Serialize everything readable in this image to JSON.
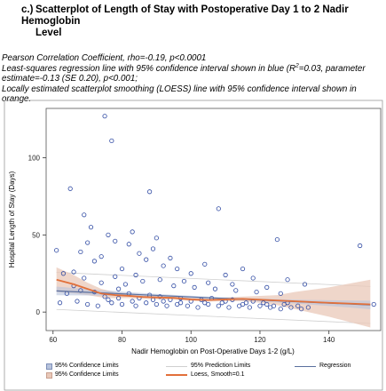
{
  "title": {
    "label": "c.)",
    "line1": "Scatterplot of Length of Stay with Postoperative Day 1 to 2 Nadir Hemoglobin",
    "line2": "Level"
  },
  "notes": {
    "line1": "Pearson Correlation Coefficient, rho=-0.19, p<0.0001",
    "line2a": "Least-squares regression line with 95% confidence interval shown in blue (R",
    "line2sup": "2",
    "line2b": "=0.03, parameter",
    "line3": "estimate=-0.13 (SE 0.20), p<0.001;",
    "line4": "Locally estimated scatterplot smoothing (LOESS) line with 95% confidence interval shown in",
    "line5": "orange."
  },
  "colors": {
    "points": "#2f4aa3",
    "regression": "#5a6f9e",
    "loess": "#e2703a",
    "loess_band": "#e9c8b8",
    "reg_band": "#b7c3dc",
    "prediction": "#cfcfcf"
  },
  "chart_data": {
    "type": "scatter",
    "xlabel": "Nadir Hemoglobin on Post-Operative Days 1-2 (g/L)",
    "ylabel": "Hospital Length of Stay (Days)",
    "xlim": [
      58,
      155
    ],
    "ylim": [
      -12,
      132
    ],
    "xticks": [
      60,
      80,
      100,
      120,
      140
    ],
    "yticks": [
      0,
      50,
      100
    ],
    "grid": false,
    "legend_position": "bottom",
    "legend": [
      "95% Confidence Limits",
      "95% Prediction Limits",
      "Regression",
      "95% Confidence Limits",
      "Loess, Smooth=0.1"
    ],
    "regression": {
      "intercept": 19.8,
      "slope": -0.1
    },
    "regression_ci_halfwidth_at_mean": 0.7,
    "regression_ci_halfwidth_at_ends": 2.8,
    "prediction_halfwidth": 12,
    "loess": {
      "x": [
        61,
        66,
        70,
        74,
        78,
        82,
        86,
        90,
        95,
        100,
        105,
        110,
        115,
        120,
        125,
        130,
        140,
        152
      ],
      "y": [
        21,
        18,
        15,
        12,
        11,
        10.5,
        9.8,
        9.5,
        9.2,
        8.2,
        7.8,
        8.2,
        8.5,
        8,
        7.5,
        7,
        6,
        5
      ],
      "lower": [
        13,
        12,
        11,
        9.5,
        9,
        9,
        8.5,
        8.2,
        8,
        7.2,
        6.8,
        7,
        7,
        6,
        4.5,
        2,
        -3,
        -10
      ],
      "upper": [
        29,
        24,
        19,
        15,
        13,
        12,
        11,
        11,
        10.5,
        9.3,
        8.8,
        9.5,
        10,
        10.5,
        11,
        13,
        16,
        21
      ]
    },
    "points": [
      [
        75,
        127
      ],
      [
        77,
        111
      ],
      [
        65,
        80
      ],
      [
        88,
        78
      ],
      [
        69,
        63
      ],
      [
        108,
        67
      ],
      [
        61,
        40
      ],
      [
        70,
        45
      ],
      [
        78,
        46
      ],
      [
        90,
        48
      ],
      [
        125,
        47
      ],
      [
        149,
        43
      ],
      [
        68,
        39
      ],
      [
        82,
        44
      ],
      [
        72,
        33
      ],
      [
        85,
        38
      ],
      [
        92,
        30
      ],
      [
        96,
        28
      ],
      [
        66,
        26
      ],
      [
        80,
        28
      ],
      [
        100,
        25
      ],
      [
        110,
        24
      ],
      [
        118,
        22
      ],
      [
        128,
        21
      ],
      [
        133,
        18
      ],
      [
        74,
        36
      ],
      [
        87,
        34
      ],
      [
        63,
        25
      ],
      [
        94,
        35
      ],
      [
        115,
        28
      ],
      [
        104,
        31
      ],
      [
        76,
        50
      ],
      [
        83,
        52
      ],
      [
        89,
        41
      ],
      [
        71,
        55
      ],
      [
        64,
        12
      ],
      [
        68,
        14
      ],
      [
        72,
        13
      ],
      [
        75,
        10
      ],
      [
        79,
        15
      ],
      [
        82,
        12
      ],
      [
        85,
        9
      ],
      [
        88,
        11
      ],
      [
        91,
        10
      ],
      [
        94,
        8
      ],
      [
        97,
        9
      ],
      [
        100,
        7
      ],
      [
        103,
        8
      ],
      [
        106,
        9
      ],
      [
        109,
        6
      ],
      [
        112,
        8
      ],
      [
        115,
        5
      ],
      [
        118,
        7
      ],
      [
        121,
        6
      ],
      [
        124,
        4
      ],
      [
        127,
        5
      ],
      [
        131,
        4
      ],
      [
        134,
        3
      ],
      [
        62,
        6
      ],
      [
        67,
        7
      ],
      [
        70,
        5
      ],
      [
        73,
        4
      ],
      [
        77,
        6
      ],
      [
        80,
        5
      ],
      [
        84,
        4
      ],
      [
        87,
        6
      ],
      [
        90,
        5
      ],
      [
        93,
        4
      ],
      [
        96,
        5
      ],
      [
        99,
        4
      ],
      [
        102,
        3
      ],
      [
        105,
        5
      ],
      [
        108,
        4
      ],
      [
        111,
        3
      ],
      [
        114,
        4
      ],
      [
        117,
        3
      ],
      [
        120,
        4
      ],
      [
        123,
        3
      ],
      [
        126,
        2
      ],
      [
        129,
        3
      ],
      [
        132,
        2
      ],
      [
        153,
        5
      ],
      [
        66,
        17
      ],
      [
        74,
        19
      ],
      [
        81,
        18
      ],
      [
        86,
        20
      ],
      [
        95,
        17
      ],
      [
        101,
        16
      ],
      [
        107,
        15
      ],
      [
        113,
        14
      ],
      [
        119,
        13
      ],
      [
        126,
        12
      ],
      [
        69,
        22
      ],
      [
        78,
        23
      ],
      [
        84,
        24
      ],
      [
        91,
        21
      ],
      [
        98,
        20
      ],
      [
        105,
        19
      ],
      [
        112,
        18
      ],
      [
        122,
        16
      ],
      [
        76,
        8
      ],
      [
        79,
        9
      ],
      [
        83,
        7
      ],
      [
        89,
        8
      ],
      [
        92,
        7
      ],
      [
        97,
        6
      ],
      [
        104,
        6
      ],
      [
        110,
        7
      ],
      [
        116,
        6
      ],
      [
        122,
        5
      ],
      [
        128,
        6
      ]
    ]
  }
}
